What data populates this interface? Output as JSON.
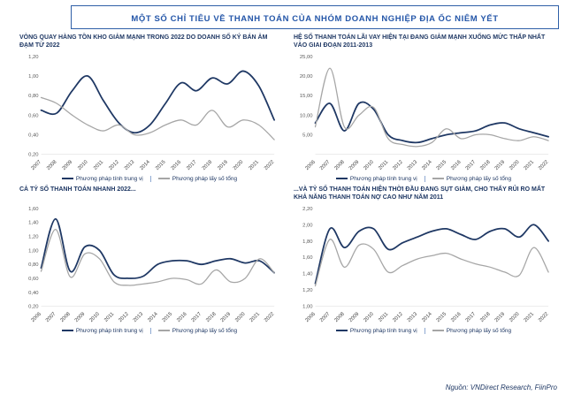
{
  "title": "MỘT SỐ CHỈ TIÊU VỀ THANH TOÁN CỦA NHÓM DOANH NGHIỆP ĐỊA ỐC NIÊM YẾT",
  "source": "Nguồn: VNDirect Research, FiinPro",
  "colors": {
    "accent": "#2456a8",
    "median_line": "#1f3864",
    "total_line": "#a6a6a6"
  },
  "chart_data": [
    {
      "type": "line",
      "title": "VÒNG QUAY HÀNG TỒN KHO GIẢM MẠNH TRONG 2022 DO DOANH SỐ KÝ BÁN ẢM ĐẠM TỪ 2022",
      "categories": [
        "2007",
        "2008",
        "2009",
        "2010",
        "2011",
        "2012",
        "2013",
        "2014",
        "2015",
        "2016",
        "2017",
        "2018",
        "2019",
        "2020",
        "2021",
        "2022"
      ],
      "ylim": [
        0.2,
        1.2
      ],
      "yticks": [
        0.2,
        0.4,
        0.6,
        0.8,
        1.0,
        1.2
      ],
      "ytick_labels": [
        "0,20",
        "0,40",
        "0,60",
        "0,80",
        "1,00",
        "1,20"
      ],
      "grid": false,
      "legend_position": "bottom",
      "series": [
        {
          "name": "Phương pháp tính trung vị",
          "color": "#1f3864",
          "width": 1.8,
          "values": [
            0.65,
            0.62,
            0.85,
            1.0,
            0.75,
            0.52,
            0.42,
            0.5,
            0.72,
            0.93,
            0.85,
            0.98,
            0.92,
            1.05,
            0.9,
            0.55
          ]
        },
        {
          "name": "Phương pháp lấy số tổng",
          "color": "#a6a6a6",
          "width": 1.3,
          "values": [
            0.78,
            0.72,
            0.6,
            0.5,
            0.44,
            0.5,
            0.4,
            0.42,
            0.5,
            0.55,
            0.5,
            0.65,
            0.48,
            0.55,
            0.5,
            0.35
          ]
        }
      ]
    },
    {
      "type": "line",
      "title": "HỆ SỐ THANH TOÁN LÃI VAY HIỆN TẠI ĐANG GIẢM MẠNH XUỐNG MỨC THẤP NHẤT VÀO GIAI ĐOẠN 2011-2013",
      "categories": [
        "2006",
        "2007",
        "2008",
        "2009",
        "2010",
        "2011",
        "2012",
        "2013",
        "2014",
        "2015",
        "2016",
        "2017",
        "2018",
        "2019",
        "2020",
        "2021",
        "2022"
      ],
      "ylim": [
        0,
        25
      ],
      "yticks": [
        5,
        10,
        15,
        20,
        25
      ],
      "ytick_labels": [
        "5,00",
        "10,00",
        "15,00",
        "20,00",
        "25,00"
      ],
      "grid": false,
      "legend_position": "bottom",
      "series": [
        {
          "name": "Phương pháp tính trung vị",
          "color": "#1f3864",
          "width": 1.8,
          "values": [
            8.0,
            13.0,
            6.0,
            13.0,
            11.5,
            5.0,
            3.5,
            3.0,
            4.0,
            5.0,
            5.5,
            6.0,
            7.5,
            8.0,
            6.5,
            5.5,
            4.5
          ]
        },
        {
          "name": "Phương pháp lấy số tổng",
          "color": "#a6a6a6",
          "width": 1.3,
          "values": [
            7.0,
            22.0,
            7.0,
            10.0,
            12.0,
            4.0,
            2.5,
            2.0,
            3.0,
            6.5,
            4.0,
            5.0,
            5.0,
            4.0,
            3.5,
            4.5,
            3.5
          ]
        }
      ]
    },
    {
      "type": "line",
      "title": "CẢ TỶ SỐ THANH TOÁN NHANH 2022...",
      "categories": [
        "2006",
        "2007",
        "2008",
        "2009",
        "2010",
        "2011",
        "2012",
        "2013",
        "2014",
        "2015",
        "2016",
        "2017",
        "2018",
        "2019",
        "2020",
        "2021",
        "2022"
      ],
      "ylim": [
        0.2,
        1.6
      ],
      "yticks": [
        0.2,
        0.4,
        0.6,
        0.8,
        1.0,
        1.2,
        1.4,
        1.6
      ],
      "ytick_labels": [
        "0,20",
        "0,40",
        "0,60",
        "0,80",
        "1,00",
        "1,20",
        "1,40",
        "1,60"
      ],
      "grid": false,
      "legend_position": "bottom",
      "series": [
        {
          "name": "Phương pháp tính trung vị",
          "color": "#1f3864",
          "width": 1.8,
          "values": [
            0.75,
            1.45,
            0.7,
            1.05,
            1.0,
            0.65,
            0.6,
            0.63,
            0.8,
            0.85,
            0.85,
            0.8,
            0.85,
            0.88,
            0.82,
            0.85,
            0.68
          ]
        },
        {
          "name": "Phương pháp lấy số tổng",
          "color": "#a6a6a6",
          "width": 1.3,
          "values": [
            0.7,
            1.3,
            0.62,
            0.95,
            0.88,
            0.55,
            0.5,
            0.52,
            0.55,
            0.6,
            0.58,
            0.52,
            0.72,
            0.55,
            0.6,
            0.88,
            0.68
          ]
        }
      ]
    },
    {
      "type": "line",
      "title": "...VÀ TỶ SỐ THANH TOÁN HIỆN THỜI ĐẦU ĐANG SỤT GIẢM, CHO THẤY RỦI RO MẤT KHẢ NĂNG THANH TOÁN NỢ CAO NHƯ NĂM 2011",
      "categories": [
        "2006",
        "2007",
        "2008",
        "2009",
        "2010",
        "2011",
        "2012",
        "2013",
        "2014",
        "2015",
        "2016",
        "2017",
        "2018",
        "2019",
        "2020",
        "2021",
        "2022"
      ],
      "ylim": [
        1.0,
        2.2
      ],
      "yticks": [
        1.0,
        1.2,
        1.4,
        1.6,
        1.8,
        2.0,
        2.2
      ],
      "ytick_labels": [
        "1,00",
        "1,20",
        "1,40",
        "1,60",
        "1,80",
        "2,00",
        "2,20"
      ],
      "grid": false,
      "legend_position": "bottom",
      "series": [
        {
          "name": "Phương pháp tính trung vị",
          "color": "#1f3864",
          "width": 1.8,
          "values": [
            1.28,
            1.95,
            1.72,
            1.92,
            1.95,
            1.7,
            1.78,
            1.85,
            1.92,
            1.95,
            1.88,
            1.82,
            1.92,
            1.95,
            1.85,
            2.0,
            1.8
          ]
        },
        {
          "name": "Phương pháp lấy số tổng",
          "color": "#a6a6a6",
          "width": 1.3,
          "values": [
            1.25,
            1.82,
            1.48,
            1.75,
            1.7,
            1.42,
            1.5,
            1.58,
            1.62,
            1.65,
            1.58,
            1.52,
            1.48,
            1.42,
            1.38,
            1.72,
            1.42
          ]
        }
      ]
    }
  ]
}
